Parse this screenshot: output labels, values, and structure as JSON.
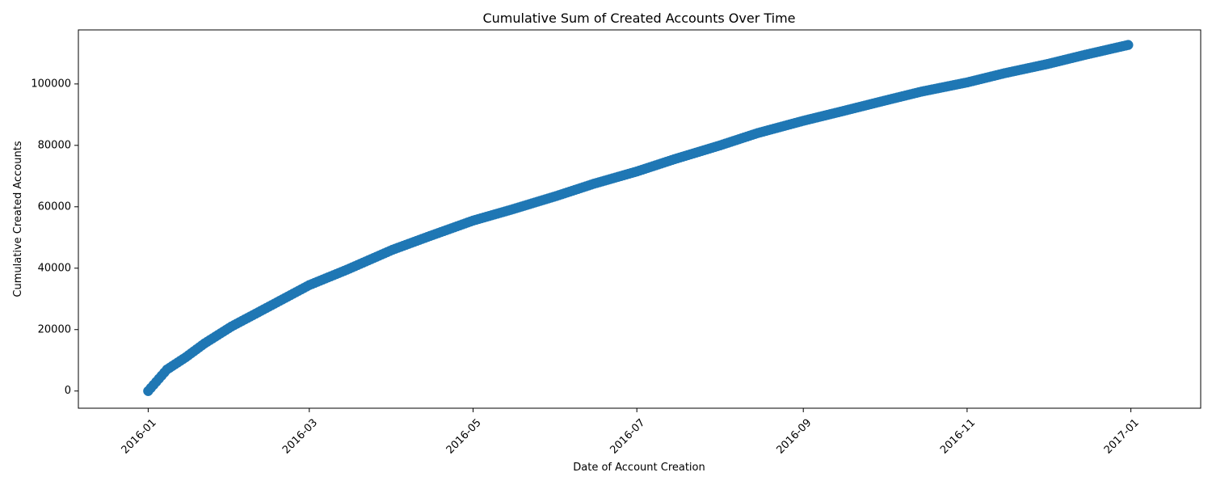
{
  "chart_data": {
    "type": "scatter",
    "title": "Cumulative Sum of Created Accounts Over Time",
    "xlabel": "Date of Account Creation",
    "ylabel": "Cumulative Created Accounts",
    "x_start": "2016-01-01",
    "x_end": "2016-12-31",
    "xlim": [
      "2015-12-06",
      "2017-01-27"
    ],
    "ylim": [
      -5600,
      117600
    ],
    "x_ticks": [
      "2016-01",
      "2016-03",
      "2016-05",
      "2016-07",
      "2016-09",
      "2016-11",
      "2017-01"
    ],
    "y_ticks": [
      0,
      20000,
      40000,
      60000,
      80000,
      100000
    ],
    "grid": false,
    "marker_color": "#1f77b4",
    "series": [
      {
        "x": [
          "2016-01-01",
          "2016-01-08",
          "2016-01-15",
          "2016-01-22",
          "2016-02-01",
          "2016-02-15",
          "2016-03-01",
          "2016-03-15",
          "2016-04-01",
          "2016-04-15",
          "2016-05-01",
          "2016-05-15",
          "2016-06-01",
          "2016-06-15",
          "2016-07-01",
          "2016-07-15",
          "2016-08-01",
          "2016-08-15",
          "2016-09-01",
          "2016-09-15",
          "2016-10-01",
          "2016-10-15",
          "2016-11-01",
          "2016-11-15",
          "2016-12-01",
          "2016-12-15",
          "2016-12-31"
        ],
        "y": [
          0,
          7000,
          11000,
          15500,
          21000,
          27500,
          34500,
          39500,
          46000,
          50500,
          55500,
          59000,
          63500,
          67500,
          71500,
          75500,
          80000,
          84000,
          88000,
          91000,
          94500,
          97500,
          100500,
          103500,
          106500,
          109500,
          112700
        ]
      }
    ]
  }
}
